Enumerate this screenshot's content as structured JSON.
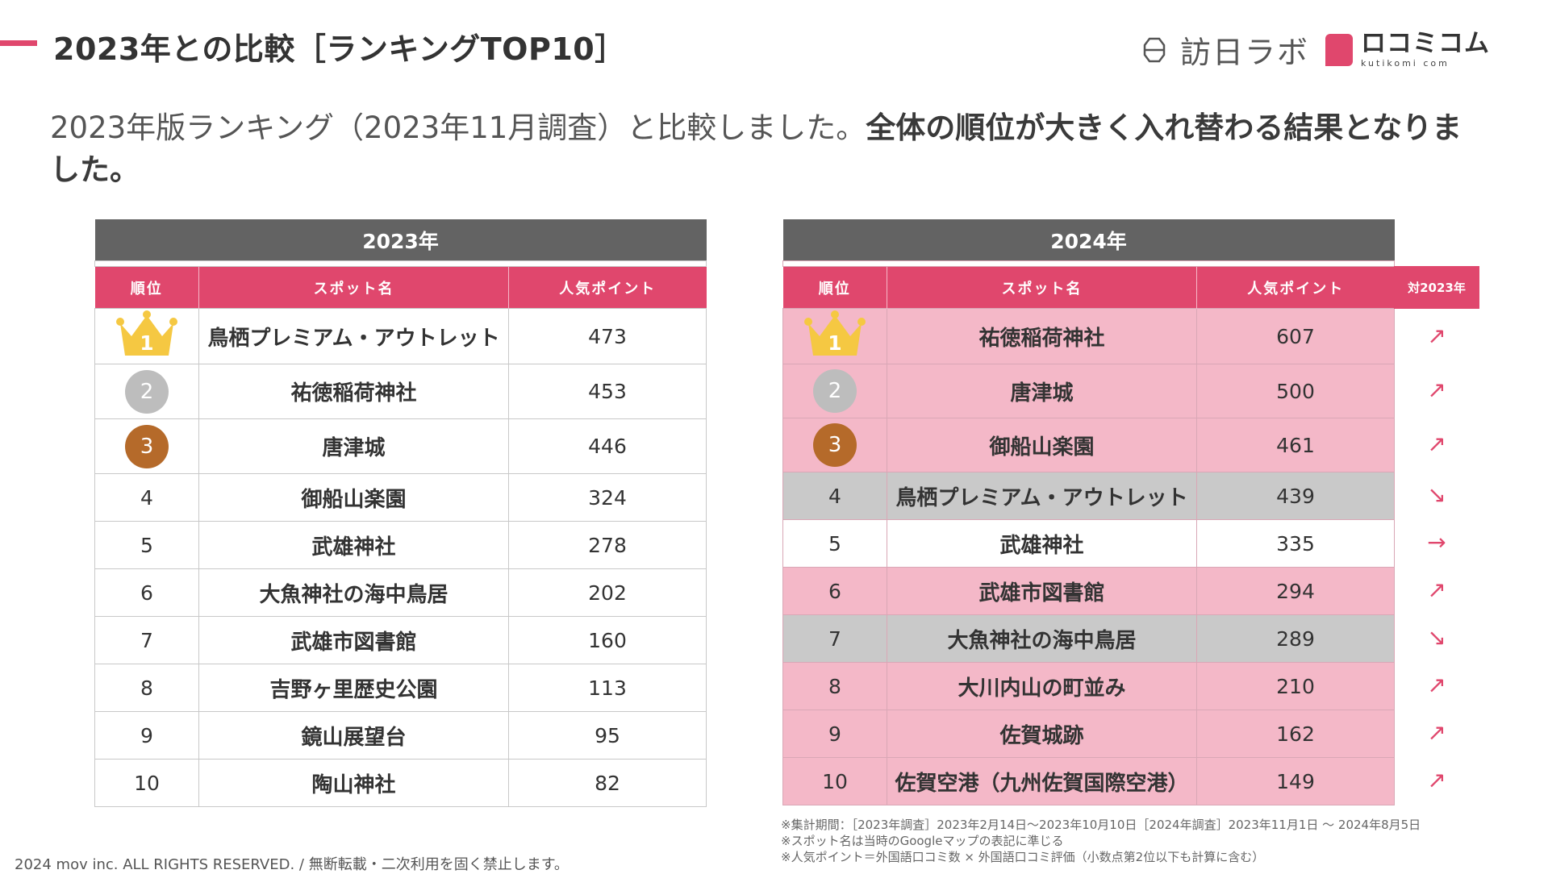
{
  "header": {
    "title": "2023年との比較［ランキングTOP10］",
    "logo1_text": "訪日ラボ",
    "logo2_main": "ロコミコム",
    "logo2_sub": "kutikomi com"
  },
  "lead": {
    "normal": "2023年版ランキング（2023年11月調査）と比較しました。",
    "bold": "全体の順位が大きく入れ替わる結果となりました。"
  },
  "columns": {
    "rank": "順位",
    "spot": "スポット名",
    "points": "人気ポイント",
    "vs": "対2023年"
  },
  "table2023": {
    "year": "2023年",
    "rows": [
      {
        "rank": "1",
        "name": "鳥栖プレミアム・アウトレット",
        "points": "473"
      },
      {
        "rank": "2",
        "name": "祐徳稲荷神社",
        "points": "453"
      },
      {
        "rank": "3",
        "name": "唐津城",
        "points": "446"
      },
      {
        "rank": "4",
        "name": "御船山楽園",
        "points": "324"
      },
      {
        "rank": "5",
        "name": "武雄神社",
        "points": "278"
      },
      {
        "rank": "6",
        "name": "大魚神社の海中鳥居",
        "points": "202"
      },
      {
        "rank": "7",
        "name": "武雄市図書館",
        "points": "160"
      },
      {
        "rank": "8",
        "name": "吉野ヶ里歴史公園",
        "points": "113"
      },
      {
        "rank": "9",
        "name": "鏡山展望台",
        "points": "95"
      },
      {
        "rank": "10",
        "name": "陶山神社",
        "points": "82"
      }
    ]
  },
  "table2024": {
    "year": "2024年",
    "rows": [
      {
        "rank": "1",
        "name": "祐徳稲荷神社",
        "points": "607",
        "trend": "↗",
        "style": "pink"
      },
      {
        "rank": "2",
        "name": "唐津城",
        "points": "500",
        "trend": "↗",
        "style": "pink"
      },
      {
        "rank": "3",
        "name": "御船山楽園",
        "points": "461",
        "trend": "↗",
        "style": "pink"
      },
      {
        "rank": "4",
        "name": "鳥栖プレミアム・アウトレット",
        "points": "439",
        "trend": "↘",
        "style": "gray"
      },
      {
        "rank": "5",
        "name": "武雄神社",
        "points": "335",
        "trend": "→",
        "style": "white"
      },
      {
        "rank": "6",
        "name": "武雄市図書館",
        "points": "294",
        "trend": "↗",
        "style": "pink"
      },
      {
        "rank": "7",
        "name": "大魚神社の海中鳥居",
        "points": "289",
        "trend": "↘",
        "style": "gray"
      },
      {
        "rank": "8",
        "name": "大川内山の町並み",
        "points": "210",
        "trend": "↗",
        "style": "pink"
      },
      {
        "rank": "9",
        "name": "佐賀城跡",
        "points": "162",
        "trend": "↗",
        "style": "pink"
      },
      {
        "rank": "10",
        "name": "佐賀空港（九州佐賀国際空港）",
        "points": "149",
        "trend": "↗",
        "style": "pink"
      }
    ]
  },
  "notes": [
    "※集計期間：［2023年調査］2023年2月14日〜2023年10月10日［2024年調査］2023年11月1日 〜 2024年8月5日",
    "※スポット名は当時のGoogleマップの表記に準じる",
    "※人気ポイント＝外国語口コミ数 × 外国語口コミ評価（小数点第2位以下も計算に含む）"
  ],
  "footer": "2024 mov inc. ALL RIGHTS RESERVED. / 無断転載・二次利用を固く禁止します。",
  "colors": {
    "accent": "#e0476d",
    "header_gray": "#636363",
    "row_pink": "#f4b8c8",
    "row_gray": "#c9c9c9",
    "gold": "#f5c842",
    "silver": "#bdbdbd",
    "bronze": "#b56a2a"
  },
  "icons": {
    "rank1": "crown-icon",
    "rank2": "silver-medal-icon",
    "rank3": "bronze-medal-icon"
  }
}
